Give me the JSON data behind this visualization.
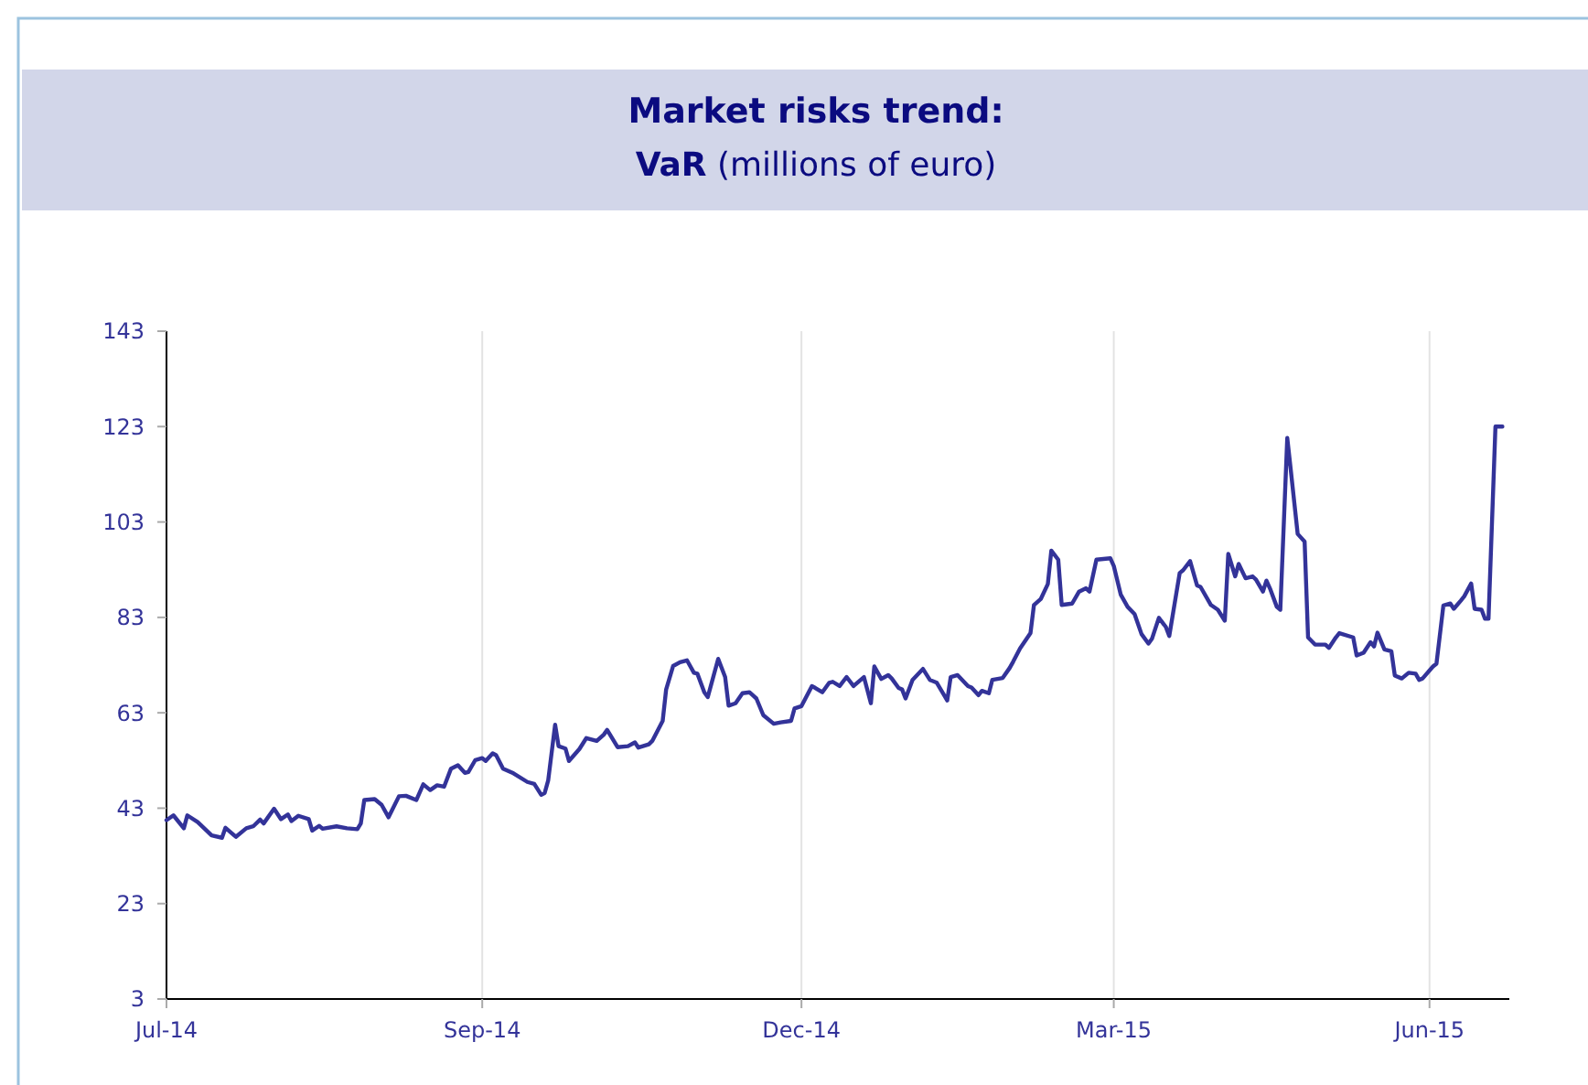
{
  "chart_data": {
    "type": "line",
    "title": "Market risks trend:",
    "subtitle": "VaR (millions of euro)",
    "x": [
      "2014-07-01",
      "2014-07-03",
      "2014-07-06",
      "2014-07-07",
      "2014-07-10",
      "2014-07-14",
      "2014-07-17",
      "2014-07-18",
      "2014-07-21",
      "2014-07-24",
      "2014-07-26",
      "2014-07-28",
      "2014-07-29",
      "2014-08-01",
      "2014-08-03",
      "2014-08-05",
      "2014-08-06",
      "2014-08-08",
      "2014-08-11",
      "2014-08-12",
      "2014-08-14",
      "2014-08-15",
      "2014-08-19",
      "2014-08-22",
      "2014-08-25",
      "2014-08-26",
      "2014-08-27",
      "2014-08-30",
      "2014-09-01",
      "2014-09-03",
      "2014-09-06",
      "2014-09-08",
      "2014-09-11",
      "2014-09-13",
      "2014-09-15",
      "2014-09-17",
      "2014-09-19",
      "2014-09-21",
      "2014-09-23",
      "2014-09-25",
      "2014-09-26",
      "2014-09-28",
      "2014-09-30",
      "2014-10-01",
      "2014-10-03",
      "2014-10-04",
      "2014-10-06",
      "2014-10-09",
      "2014-10-13",
      "2014-10-15",
      "2014-10-17",
      "2014-10-18",
      "2014-10-19",
      "2014-10-21",
      "2014-10-22",
      "2014-10-24",
      "2014-10-25",
      "2014-10-28",
      "2014-10-30",
      "2014-11-02",
      "2014-11-04",
      "2014-11-05",
      "2014-11-08",
      "2014-11-11",
      "2014-11-13",
      "2014-11-14",
      "2014-11-17",
      "2014-11-18",
      "2014-11-21",
      "2014-11-22",
      "2014-11-24",
      "2014-11-26",
      "2014-11-28",
      "2014-11-30",
      "2014-12-01",
      "2014-12-03",
      "2014-12-04",
      "2014-12-07",
      "2014-12-09",
      "2014-12-10",
      "2014-12-12",
      "2014-12-14",
      "2014-12-16",
      "2014-12-18",
      "2014-12-20",
      "2014-12-23",
      "2014-12-25",
      "2014-12-28",
      "2014-12-29",
      "2014-12-31",
      "2015-01-03",
      "2015-01-04",
      "2015-01-06",
      "2015-01-08",
      "2015-01-09",
      "2015-01-11",
      "2015-01-13",
      "2015-01-15",
      "2015-01-18",
      "2015-01-20",
      "2015-01-21",
      "2015-01-23",
      "2015-01-25",
      "2015-01-26",
      "2015-01-28",
      "2015-01-29",
      "2015-01-30",
      "2015-02-01",
      "2015-02-04",
      "2015-02-06",
      "2015-02-08",
      "2015-02-11",
      "2015-02-12",
      "2015-02-14",
      "2015-02-17",
      "2015-02-18",
      "2015-02-20",
      "2015-02-21",
      "2015-02-23",
      "2015-02-24",
      "2015-02-27",
      "2015-03-01",
      "2015-03-02",
      "2015-03-04",
      "2015-03-07",
      "2015-03-08",
      "2015-03-10",
      "2015-03-12",
      "2015-03-13",
      "2015-03-15",
      "2015-03-16",
      "2015-03-19",
      "2015-03-21",
      "2015-03-23",
      "2015-03-24",
      "2015-03-26",
      "2015-03-30",
      "2015-03-31",
      "2015-04-02",
      "2015-04-04",
      "2015-04-06",
      "2015-04-08",
      "2015-04-10",
      "2015-04-11",
      "2015-04-13",
      "2015-04-15",
      "2015-04-16",
      "2015-04-19",
      "2015-04-20",
      "2015-04-22",
      "2015-04-24",
      "2015-04-25",
      "2015-04-28",
      "2015-04-30",
      "2015-05-02",
      "2015-05-03",
      "2015-05-05",
      "2015-05-06",
      "2015-05-08",
      "2015-05-10",
      "2015-05-11",
      "2015-05-13",
      "2015-05-14",
      "2015-05-15",
      "2015-05-17",
      "2015-05-18",
      "2015-05-20",
      "2015-05-21",
      "2015-05-23",
      "2015-05-25",
      "2015-05-26",
      "2015-05-28",
      "2015-05-31",
      "2015-06-01",
      "2015-06-03",
      "2015-06-04",
      "2015-06-08",
      "2015-06-09",
      "2015-06-11",
      "2015-06-13",
      "2015-06-14",
      "2015-06-15",
      "2015-06-17",
      "2015-06-19",
      "2015-06-20",
      "2015-06-22",
      "2015-06-24",
      "2015-06-26",
      "2015-06-27",
      "2015-06-28",
      "2015-07-01",
      "2015-07-02",
      "2015-07-04",
      "2015-07-06",
      "2015-07-07",
      "2015-07-09",
      "2015-07-10",
      "2015-07-12",
      "2015-07-13",
      "2015-07-15",
      "2015-07-16",
      "2015-07-17",
      "2015-07-19",
      "2015-07-21"
    ],
    "series": [
      {
        "color": "#333399",
        "values": [
          40.5,
          41.5,
          38.8,
          41.5,
          40.1,
          37.3,
          36.8,
          38.9,
          37,
          38.8,
          39.2,
          40.6,
          39.8,
          42.9,
          40.7,
          41.7,
          40.3,
          41.4,
          40.7,
          38.3,
          39.3,
          38.7,
          39.2,
          38.8,
          38.6,
          39.8,
          44.7,
          44.9,
          43.7,
          41.1,
          45.5,
          45.6,
          44.7,
          48,
          46.8,
          47.8,
          47.5,
          51.3,
          52,
          50.4,
          50.6,
          53.1,
          53.5,
          52.9,
          54.5,
          54.1,
          51.3,
          50.3,
          48.5,
          48.1,
          45.8,
          46.2,
          48.8,
          60.5,
          56,
          55.5,
          52.9,
          55.4,
          57.7,
          57.1,
          58.4,
          59.4,
          55.8,
          56,
          56.8,
          55.7,
          56.4,
          57.1,
          61.3,
          67.9,
          72.8,
          73.6,
          74,
          71.4,
          71.2,
          67.3,
          66.3,
          74.3,
          70.5,
          64.5,
          65,
          67.1,
          67.3,
          66,
          62.5,
          60.7,
          61,
          61.3,
          63.9,
          64.4,
          68.6,
          68.2,
          67.3,
          69.3,
          69.5,
          68.6,
          70.5,
          68.6,
          70.5,
          65,
          72.7,
          70.1,
          70.9,
          70.2,
          68.2,
          67.9,
          66,
          69.9,
          72.2,
          69.9,
          69.3,
          65.6,
          70.5,
          70.9,
          68.6,
          68.3,
          66.7,
          67.6,
          67.1,
          69.9,
          70.3,
          72.4,
          73.7,
          76.5,
          79.7,
          85.6,
          86.9,
          90,
          97,
          95.1,
          85.6,
          85.9,
          88.4,
          89.1,
          88.4,
          95.1,
          95.4,
          93.8,
          87.8,
          85.2,
          83.7,
          79.5,
          77.5,
          78.5,
          82.9,
          81,
          79.1,
          92.3,
          92.9,
          94.8,
          89.7,
          89.4,
          85.6,
          84.6,
          82.3,
          96.3,
          91.6,
          94.2,
          91.2,
          91.6,
          90.9,
          88.4,
          90.7,
          89.1,
          85.2,
          84.6,
          120.6,
          114,
          100.5,
          98.9,
          78.8,
          77.3,
          77.3,
          76.6,
          78.8,
          79.7,
          78.8,
          75,
          75.6,
          77.8,
          76.9,
          79.8,
          76.3,
          75.9,
          70.8,
          70.2,
          71.4,
          71.2,
          69.9,
          70.2,
          72.7,
          73.3,
          85.5,
          85.9,
          84.8,
          86.5,
          87.4,
          90.1,
          84.8,
          84.6,
          82.7,
          82.7,
          123,
          123
        ]
      }
    ],
    "xlim": [
      "2014-07-01",
      "2015-07-23"
    ],
    "xticks": [
      {
        "value": "2014-07-01",
        "label": "Jul-14"
      },
      {
        "value": "2014-09-30",
        "label": "Sep-14"
      },
      {
        "value": "2014-12-31",
        "label": "Dec-14"
      },
      {
        "value": "2015-03-31",
        "label": "Mar-15"
      },
      {
        "value": "2015-06-30",
        "label": "Jun-15"
      }
    ],
    "ylim": [
      3,
      143
    ],
    "yticks": [
      3,
      23,
      43,
      63,
      83,
      103,
      123,
      143
    ],
    "grid": "x",
    "marker": "none",
    "line_style": "solid"
  }
}
